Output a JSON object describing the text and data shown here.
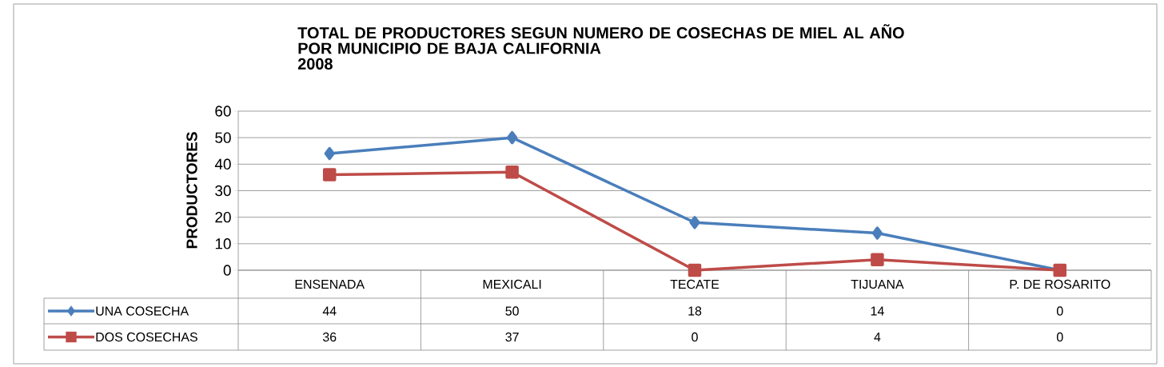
{
  "chart_data": {
    "type": "line",
    "title": "TOTAL DE PRODUCTORES SEGUN NUMERO DE  COSECHAS DE MIEL AL AÑO POR MUNICIPIO DE BAJA CALIFORNIA",
    "subtitle": "2008",
    "ylabel": "PRODUCTORES",
    "categories": [
      "ENSENADA",
      "MEXICALI",
      "TECATE",
      "TIJUANA",
      "P. DE ROSARITO"
    ],
    "series": [
      {
        "name": "UNA COSECHA",
        "color": "#4a7ebb",
        "marker": "diamond",
        "values": [
          44,
          50,
          18,
          14,
          0
        ]
      },
      {
        "name": "DOS COSECHAS",
        "color": "#be4b48",
        "marker": "square",
        "values": [
          36,
          37,
          0,
          4,
          0
        ]
      }
    ],
    "ylim": [
      0,
      60
    ],
    "yticks": [
      0,
      10,
      20,
      30,
      40,
      50,
      60
    ],
    "grid": "y",
    "legend": "bottom",
    "data_labels": true,
    "line_style": "solid"
  }
}
